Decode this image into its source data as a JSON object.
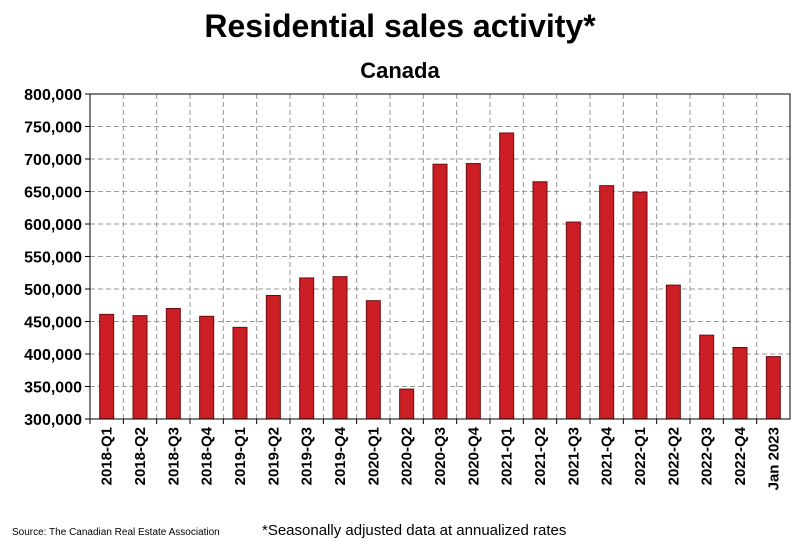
{
  "chart_data": {
    "type": "bar",
    "title": "Residential sales activity*",
    "subtitle": "Canada",
    "categories": [
      "2018-Q1",
      "2018-Q2",
      "2018-Q3",
      "2018-Q4",
      "2019-Q1",
      "2019-Q2",
      "2019-Q3",
      "2019-Q4",
      "2020-Q1",
      "2020-Q2",
      "2020-Q3",
      "2020-Q4",
      "2021-Q1",
      "2021-Q2",
      "2021-Q3",
      "2021-Q4",
      "2022-Q1",
      "2022-Q2",
      "2022-Q3",
      "2022-Q4",
      "Jan 2023"
    ],
    "values": [
      461000,
      459000,
      470000,
      458000,
      441000,
      490000,
      517000,
      519000,
      482000,
      346000,
      692000,
      693000,
      740000,
      665000,
      603000,
      659000,
      649000,
      506000,
      429000,
      410000,
      396000
    ],
    "ylim": [
      300000,
      800000
    ],
    "yticks": [
      "300,000",
      "350,000",
      "400,000",
      "450,000",
      "500,000",
      "550,000",
      "600,000",
      "650,000",
      "700,000",
      "750,000",
      "800,000"
    ],
    "xlabel": "",
    "ylabel": "",
    "bar_color": "#cc1f25",
    "grid": true
  },
  "source": "Source: The Canadian Real Estate Association",
  "footnote": "*Seasonally adjusted data at annualized rates"
}
